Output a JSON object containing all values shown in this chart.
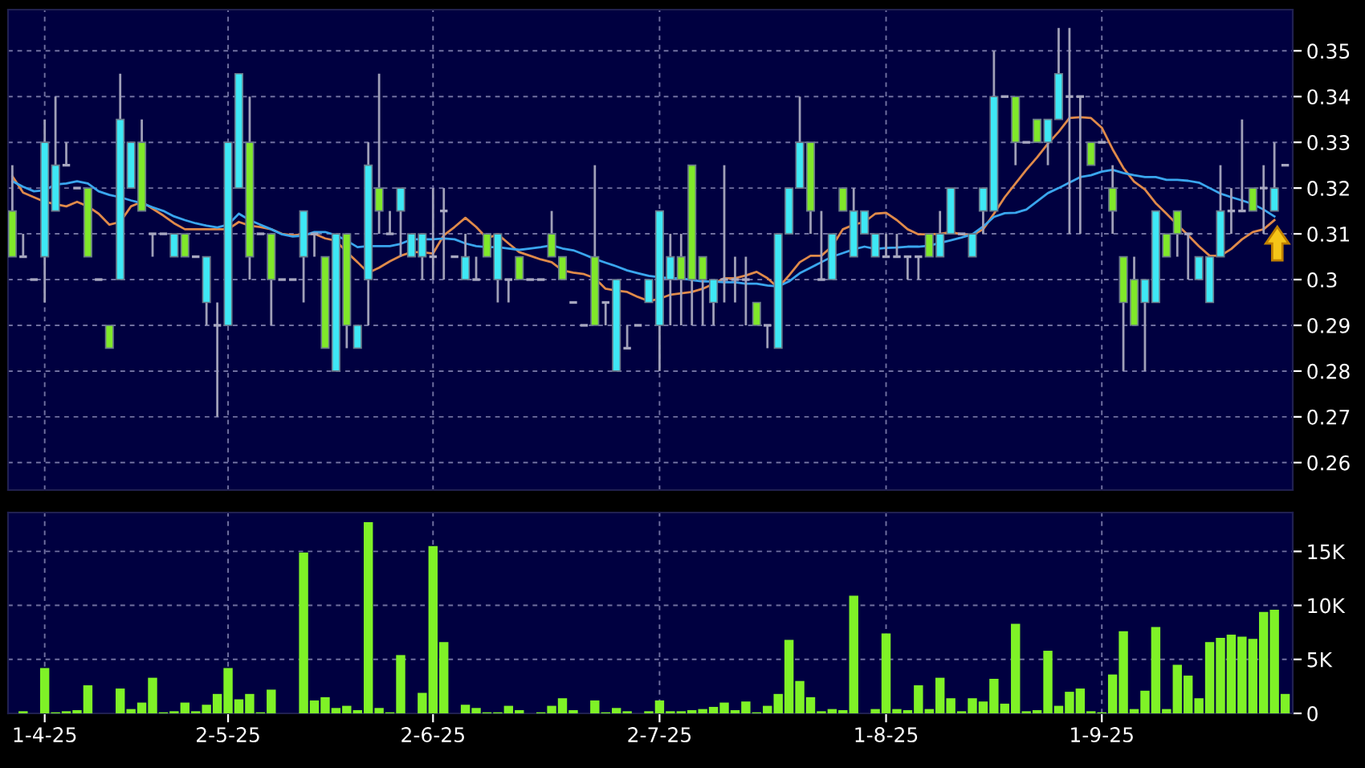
{
  "chart_data": [
    {
      "type": "candlestick",
      "tick_labels": "y",
      "grid": true,
      "categories": [
        null,
        null,
        null,
        null,
        null,
        null,
        null,
        null,
        null,
        null,
        null,
        null,
        null,
        null,
        null,
        null,
        null,
        null,
        null,
        null,
        null,
        null,
        null,
        null,
        null,
        null,
        null,
        null,
        null,
        null,
        null,
        null,
        null,
        null,
        null,
        null,
        null,
        null,
        null,
        null,
        null,
        null,
        null,
        null,
        null,
        null,
        null,
        null,
        null,
        null,
        null,
        null,
        null,
        null,
        null,
        null,
        null,
        null,
        null,
        null,
        null,
        null,
        null,
        null,
        null,
        null,
        null,
        null,
        null,
        null,
        null,
        null,
        null,
        null,
        null,
        null,
        null,
        null,
        null,
        null,
        null,
        null,
        null,
        null,
        null,
        null,
        null,
        null,
        null,
        null,
        null,
        null,
        null,
        null,
        null,
        null,
        null,
        null,
        null,
        null,
        null,
        null,
        null,
        null,
        null,
        null,
        null,
        null,
        null,
        null,
        null,
        null,
        null,
        null,
        null,
        null,
        null,
        null,
        null
      ],
      "ohlc": [
        [
          0.315,
          0.325,
          0.305,
          0.305
        ],
        [
          0.305,
          0.31,
          0.305,
          0.305
        ],
        [
          0.3,
          0.3,
          0.3,
          0.3
        ],
        [
          0.305,
          0.335,
          0.295,
          0.33
        ],
        [
          0.315,
          0.34,
          0.315,
          0.325
        ],
        [
          0.325,
          0.33,
          0.325,
          0.325
        ],
        [
          0.32,
          0.32,
          0.32,
          0.32
        ],
        [
          0.32,
          0.32,
          0.305,
          0.305
        ],
        [
          0.3,
          0.3,
          0.3,
          0.3
        ],
        [
          0.29,
          0.29,
          0.285,
          0.285
        ],
        [
          0.3,
          0.345,
          0.3,
          0.335
        ],
        [
          0.32,
          0.33,
          0.32,
          0.33
        ],
        [
          0.33,
          0.335,
          0.315,
          0.315
        ],
        [
          0.31,
          0.31,
          0.305,
          0.31
        ],
        [
          0.31,
          0.31,
          0.31,
          0.31
        ],
        [
          0.305,
          0.31,
          0.305,
          0.31
        ],
        [
          0.31,
          0.31,
          0.305,
          0.305
        ],
        [
          0.305,
          0.305,
          0.305,
          0.305
        ],
        [
          0.295,
          0.305,
          0.29,
          0.305
        ],
        [
          0.29,
          0.295,
          0.27,
          0.29
        ],
        [
          0.29,
          0.33,
          0.29,
          0.33
        ],
        [
          0.32,
          0.345,
          0.32,
          0.345
        ],
        [
          0.33,
          0.34,
          0.3,
          0.305
        ],
        [
          0.31,
          0.31,
          0.31,
          0.31
        ],
        [
          0.31,
          0.31,
          0.29,
          0.3
        ],
        [
          0.3,
          0.3,
          0.3,
          0.3
        ],
        [
          0.3,
          0.3,
          0.3,
          0.3
        ],
        [
          0.305,
          0.315,
          0.295,
          0.315
        ],
        [
          0.31,
          0.31,
          0.305,
          0.31
        ],
        [
          0.305,
          0.305,
          0.285,
          0.285
        ],
        [
          0.28,
          0.31,
          0.28,
          0.31
        ],
        [
          0.31,
          0.31,
          0.285,
          0.29
        ],
        [
          0.285,
          0.29,
          0.285,
          0.29
        ],
        [
          0.3,
          0.33,
          0.29,
          0.325
        ],
        [
          0.32,
          0.345,
          0.31,
          0.315
        ],
        [
          0.31,
          0.315,
          0.31,
          0.31
        ],
        [
          0.315,
          0.32,
          0.305,
          0.32
        ],
        [
          0.305,
          0.31,
          0.305,
          0.31
        ],
        [
          0.305,
          0.31,
          0.3,
          0.31
        ],
        [
          0.305,
          0.32,
          0.3,
          0.305
        ],
        [
          0.315,
          0.32,
          0.3,
          0.315
        ],
        [
          0.305,
          0.305,
          0.305,
          0.305
        ],
        [
          0.3,
          0.31,
          0.3,
          0.305
        ],
        [
          0.3,
          0.305,
          0.3,
          0.3
        ],
        [
          0.31,
          0.31,
          0.305,
          0.305
        ],
        [
          0.3,
          0.31,
          0.295,
          0.31
        ],
        [
          0.3,
          0.3,
          0.295,
          0.3
        ],
        [
          0.305,
          0.305,
          0.3,
          0.3
        ],
        [
          0.3,
          0.3,
          0.3,
          0.3
        ],
        [
          0.3,
          0.3,
          0.3,
          0.3
        ],
        [
          0.31,
          0.315,
          0.305,
          0.305
        ],
        [
          0.305,
          0.305,
          0.3,
          0.3
        ],
        [
          0.295,
          0.295,
          0.295,
          0.295
        ],
        [
          0.29,
          0.29,
          0.29,
          0.29
        ],
        [
          0.305,
          0.325,
          0.29,
          0.29
        ],
        [
          0.295,
          0.295,
          0.29,
          0.295
        ],
        [
          0.28,
          0.3,
          0.28,
          0.3
        ],
        [
          0.285,
          0.29,
          0.285,
          0.285
        ],
        [
          0.29,
          0.29,
          0.29,
          0.29
        ],
        [
          0.295,
          0.3,
          0.295,
          0.3
        ],
        [
          0.29,
          0.315,
          0.28,
          0.315
        ],
        [
          0.3,
          0.31,
          0.29,
          0.305
        ],
        [
          0.305,
          0.31,
          0.29,
          0.3
        ],
        [
          0.325,
          0.325,
          0.29,
          0.3
        ],
        [
          0.305,
          0.305,
          0.29,
          0.3
        ],
        [
          0.295,
          0.3,
          0.29,
          0.3
        ],
        [
          0.3,
          0.325,
          0.295,
          0.3
        ],
        [
          0.3,
          0.305,
          0.295,
          0.3
        ],
        [
          0.3,
          0.305,
          0.29,
          0.3
        ],
        [
          0.295,
          0.295,
          0.29,
          0.29
        ],
        [
          0.29,
          0.29,
          0.285,
          0.29
        ],
        [
          0.285,
          0.31,
          0.285,
          0.31
        ],
        [
          0.31,
          0.32,
          0.31,
          0.32
        ],
        [
          0.32,
          0.34,
          0.32,
          0.33
        ],
        [
          0.33,
          0.33,
          0.31,
          0.315
        ],
        [
          0.3,
          0.315,
          0.3,
          0.3
        ],
        [
          0.3,
          0.31,
          0.3,
          0.31
        ],
        [
          0.32,
          0.32,
          0.315,
          0.315
        ],
        [
          0.305,
          0.32,
          0.305,
          0.315
        ],
        [
          0.31,
          0.315,
          0.31,
          0.315
        ],
        [
          0.305,
          0.31,
          0.305,
          0.31
        ],
        [
          0.305,
          0.31,
          0.305,
          0.305
        ],
        [
          0.305,
          0.31,
          0.305,
          0.305
        ],
        [
          0.305,
          0.305,
          0.3,
          0.305
        ],
        [
          0.305,
          0.305,
          0.3,
          0.305
        ],
        [
          0.31,
          0.31,
          0.305,
          0.305
        ],
        [
          0.305,
          0.315,
          0.305,
          0.31
        ],
        [
          0.31,
          0.32,
          0.31,
          0.32
        ],
        [
          0.31,
          0.31,
          0.31,
          0.31
        ],
        [
          0.305,
          0.31,
          0.305,
          0.31
        ],
        [
          0.315,
          0.32,
          0.31,
          0.32
        ],
        [
          0.315,
          0.35,
          0.315,
          0.34
        ],
        [
          0.34,
          0.34,
          0.34,
          0.34
        ],
        [
          0.34,
          0.34,
          0.325,
          0.33
        ],
        [
          0.33,
          0.33,
          0.33,
          0.33
        ],
        [
          0.335,
          0.335,
          0.33,
          0.33
        ],
        [
          0.33,
          0.335,
          0.325,
          0.335
        ],
        [
          0.335,
          0.355,
          0.335,
          0.345
        ],
        [
          0.34,
          0.355,
          0.31,
          0.34
        ],
        [
          0.34,
          0.34,
          0.31,
          0.34
        ],
        [
          0.33,
          0.33,
          0.325,
          0.325
        ],
        [
          0.33,
          0.33,
          0.33,
          0.33
        ],
        [
          0.32,
          0.325,
          0.31,
          0.315
        ],
        [
          0.305,
          0.305,
          0.28,
          0.295
        ],
        [
          0.3,
          0.305,
          0.29,
          0.29
        ],
        [
          0.295,
          0.3,
          0.28,
          0.3
        ],
        [
          0.295,
          0.315,
          0.295,
          0.315
        ],
        [
          0.31,
          0.31,
          0.305,
          0.305
        ],
        [
          0.315,
          0.315,
          0.305,
          0.31
        ],
        [
          0.31,
          0.31,
          0.3,
          0.31
        ],
        [
          0.3,
          0.305,
          0.3,
          0.305
        ],
        [
          0.295,
          0.305,
          0.295,
          0.305
        ],
        [
          0.305,
          0.325,
          0.305,
          0.315
        ],
        [
          0.315,
          0.32,
          0.31,
          0.315
        ],
        [
          0.315,
          0.335,
          0.315,
          0.315
        ],
        [
          0.32,
          0.32,
          0.315,
          0.315
        ],
        [
          0.32,
          0.325,
          0.31,
          0.32
        ],
        [
          0.315,
          0.33,
          0.315,
          0.32
        ],
        [
          0.325,
          0.325,
          0.325,
          0.325
        ]
      ],
      "colors": [
        "#80e82a",
        "#a8a8c0",
        "#a8a8c0",
        "#3ee8f5",
        "#3ee8f5",
        "#a8a8c0",
        "#a8a8c0",
        "#80e82a",
        "#a8a8c0",
        "#80e82a",
        "#3ee8f5",
        "#3ee8f5",
        "#80e82a",
        "#a8a8c0",
        "#a8a8c0",
        "#3ee8f5",
        "#80e82a",
        "#a8a8c0",
        "#3ee8f5",
        "#a8a8c0",
        "#3ee8f5",
        "#3ee8f5",
        "#80e82a",
        "#a8a8c0",
        "#80e82a",
        "#a8a8c0",
        "#a8a8c0",
        "#3ee8f5",
        "#a8a8c0",
        "#80e82a",
        "#3ee8f5",
        "#80e82a",
        "#3ee8f5",
        "#3ee8f5",
        "#80e82a",
        "#a8a8c0",
        "#3ee8f5",
        "#3ee8f5",
        "#3ee8f5",
        "#a8a8c0",
        "#a8a8c0",
        "#a8a8c0",
        "#3ee8f5",
        "#a8a8c0",
        "#80e82a",
        "#3ee8f5",
        "#a8a8c0",
        "#80e82a",
        "#a8a8c0",
        "#a8a8c0",
        "#80e82a",
        "#80e82a",
        "#a8a8c0",
        "#a8a8c0",
        "#80e82a",
        "#a8a8c0",
        "#3ee8f5",
        "#a8a8c0",
        "#a8a8c0",
        "#3ee8f5",
        "#3ee8f5",
        "#3ee8f5",
        "#80e82a",
        "#80e82a",
        "#80e82a",
        "#3ee8f5",
        "#a8a8c0",
        "#a8a8c0",
        "#a8a8c0",
        "#80e82a",
        "#a8a8c0",
        "#3ee8f5",
        "#3ee8f5",
        "#3ee8f5",
        "#80e82a",
        "#a8a8c0",
        "#3ee8f5",
        "#80e82a",
        "#3ee8f5",
        "#3ee8f5",
        "#3ee8f5",
        "#a8a8c0",
        "#a8a8c0",
        "#a8a8c0",
        "#a8a8c0",
        "#80e82a",
        "#3ee8f5",
        "#3ee8f5",
        "#a8a8c0",
        "#3ee8f5",
        "#3ee8f5",
        "#3ee8f5",
        "#a8a8c0",
        "#80e82a",
        "#a8a8c0",
        "#80e82a",
        "#3ee8f5",
        "#3ee8f5",
        "#a8a8c0",
        "#a8a8c0",
        "#80e82a",
        "#a8a8c0",
        "#80e82a",
        "#80e82a",
        "#80e82a",
        "#3ee8f5",
        "#3ee8f5",
        "#80e82a",
        "#80e82a",
        "#a8a8c0",
        "#3ee8f5",
        "#3ee8f5",
        "#3ee8f5",
        "#a8a8c0",
        "#a8a8c0",
        "#80e82a",
        "#a8a8c0",
        "#3ee8f5",
        "#a8a8c0"
      ],
      "series": [
        {
          "type": "line",
          "color": "#e08a4a",
          "values": [
            0.3226,
            0.319,
            0.318,
            0.317,
            0.3165,
            0.316,
            0.317,
            0.316,
            0.3144,
            0.312,
            0.3126,
            0.316,
            0.317,
            0.3155,
            0.314,
            0.3123,
            0.311,
            0.311,
            0.311,
            0.311,
            0.311,
            0.3126,
            0.3118,
            0.3115,
            0.311,
            0.31,
            0.3097,
            0.3099,
            0.31,
            0.309,
            0.3085,
            0.306,
            0.3038,
            0.3015,
            0.3026,
            0.304,
            0.3052,
            0.306,
            0.306,
            0.3057,
            0.3097,
            0.3115,
            0.3135,
            0.3115,
            0.309,
            0.3099,
            0.3079,
            0.306,
            0.3052,
            0.3044,
            0.3038,
            0.302,
            0.3015,
            0.3012,
            0.3003,
            0.298,
            0.2976,
            0.2973,
            0.2962,
            0.2953,
            0.2958,
            0.2967,
            0.297,
            0.2973,
            0.298,
            0.2991,
            0.3003,
            0.3003,
            0.3009,
            0.3017,
            0.3003,
            0.2982,
            0.3009,
            0.3038,
            0.3052,
            0.3052,
            0.3073,
            0.311,
            0.312,
            0.3126,
            0.3144,
            0.3146,
            0.313,
            0.311,
            0.3099,
            0.3099,
            0.31,
            0.3104,
            0.3099,
            0.3097,
            0.311,
            0.3144,
            0.318,
            0.321,
            0.324,
            0.3267,
            0.3297,
            0.3323,
            0.3353,
            0.3355,
            0.3353,
            0.3332,
            0.3285,
            0.3244,
            0.3214,
            0.3197,
            0.3167,
            0.3144,
            0.312,
            0.3097,
            0.3073,
            0.3052,
            0.3052,
            0.3067,
            0.3088,
            0.3104,
            0.311,
            0.313,
            null
          ]
        },
        {
          "type": "line",
          "color": "#3aa6ee",
          "values": [
            0.3215,
            0.3203,
            0.3193,
            0.3195,
            0.3208,
            0.321,
            0.3215,
            0.321,
            0.3193,
            0.3185,
            0.318,
            0.3173,
            0.3167,
            0.3158,
            0.315,
            0.3138,
            0.313,
            0.3123,
            0.3118,
            0.3114,
            0.312,
            0.3144,
            0.313,
            0.312,
            0.311,
            0.3099,
            0.3094,
            0.3096,
            0.3104,
            0.3104,
            0.3097,
            0.3085,
            0.3071,
            0.3073,
            0.3073,
            0.3073,
            0.3078,
            0.3088,
            0.3088,
            0.3088,
            0.309,
            0.3088,
            0.3079,
            0.3073,
            0.3071,
            0.3071,
            0.3068,
            0.3065,
            0.3068,
            0.3071,
            0.3075,
            0.3068,
            0.3064,
            0.3055,
            0.3045,
            0.3037,
            0.3029,
            0.302,
            0.3014,
            0.3008,
            0.3005,
            0.3003,
            0.3003,
            0.2999,
            0.2996,
            0.2996,
            0.2994,
            0.2994,
            0.2991,
            0.2991,
            0.2987,
            0.2985,
            0.2996,
            0.3014,
            0.3026,
            0.3038,
            0.305,
            0.3058,
            0.3066,
            0.3072,
            0.3067,
            0.3069,
            0.307,
            0.3072,
            0.3072,
            0.3074,
            0.308,
            0.3086,
            0.3092,
            0.3099,
            0.3116,
            0.3137,
            0.3145,
            0.3146,
            0.3153,
            0.3171,
            0.3189,
            0.32,
            0.3212,
            0.3224,
            0.3228,
            0.3236,
            0.324,
            0.3233,
            0.3228,
            0.3224,
            0.3224,
            0.3218,
            0.3218,
            0.3216,
            0.3212,
            0.32,
            0.3188,
            0.318,
            0.3173,
            0.3165,
            0.3153,
            0.3138,
            null
          ]
        }
      ],
      "ylim": [
        0.254,
        0.359
      ],
      "yticks": [
        0.26,
        0.27,
        0.28,
        0.29,
        0.3,
        0.31,
        0.32,
        0.33,
        0.34,
        0.35
      ]
    },
    {
      "type": "bar",
      "grid": true,
      "color": "#7ff227",
      "categories": [
        null,
        null,
        null,
        "1-4-25",
        null,
        null,
        null,
        null,
        null,
        null,
        null,
        null,
        null,
        null,
        null,
        null,
        null,
        null,
        null,
        null,
        "2-5-25",
        null,
        null,
        null,
        null,
        null,
        null,
        null,
        null,
        null,
        null,
        null,
        null,
        null,
        null,
        null,
        null,
        null,
        null,
        "2-6-25",
        null,
        null,
        null,
        null,
        null,
        null,
        null,
        null,
        null,
        null,
        null,
        null,
        null,
        null,
        null,
        null,
        null,
        null,
        null,
        null,
        "2-7-25",
        null,
        null,
        null,
        null,
        null,
        null,
        null,
        null,
        null,
        null,
        null,
        null,
        null,
        null,
        null,
        null,
        null,
        null,
        null,
        null,
        "1-8-25",
        null,
        null,
        null,
        null,
        null,
        null,
        null,
        null,
        null,
        null,
        null,
        null,
        null,
        null,
        null,
        null,
        null,
        null,
        null,
        "1-9-25",
        null,
        null,
        null,
        null,
        null,
        null,
        null,
        null,
        null,
        null,
        null,
        null,
        null,
        null,
        null,
        null,
        null
      ],
      "values": [
        0,
        200,
        0,
        4200,
        100,
        200,
        300,
        2600,
        0,
        0,
        2300,
        400,
        1000,
        3300,
        100,
        200,
        1000,
        200,
        800,
        1800,
        4200,
        1300,
        1800,
        100,
        2200,
        0,
        0,
        14900,
        1200,
        1500,
        500,
        700,
        300,
        17700,
        500,
        100,
        5400,
        0,
        1900,
        15500,
        6600,
        0,
        800,
        500,
        100,
        100,
        700,
        300,
        0,
        100,
        700,
        1400,
        300,
        0,
        1200,
        100,
        500,
        200,
        0,
        200,
        1200,
        200,
        200,
        300,
        400,
        600,
        1000,
        300,
        1100,
        100,
        700,
        1800,
        6800,
        3000,
        1500,
        200,
        400,
        300,
        10900,
        0,
        400,
        7400,
        400,
        300,
        2600,
        400,
        3300,
        1400,
        200,
        1400,
        1100,
        3200,
        900,
        8300,
        200,
        300,
        5800,
        700,
        2000,
        2300,
        200,
        100,
        3600,
        7600,
        400,
        2100,
        8000,
        400,
        4500,
        3500,
        1400,
        6600,
        7000,
        7300,
        7100,
        6900,
        9400,
        9600,
        1800
      ],
      "ylim": [
        0,
        18600
      ],
      "yticks": [
        0,
        {
          "value": 5000,
          "label": "5K"
        },
        {
          "value": 10000,
          "label": "10K"
        },
        {
          "value": 15000,
          "label": "15K"
        }
      ]
    }
  ]
}
